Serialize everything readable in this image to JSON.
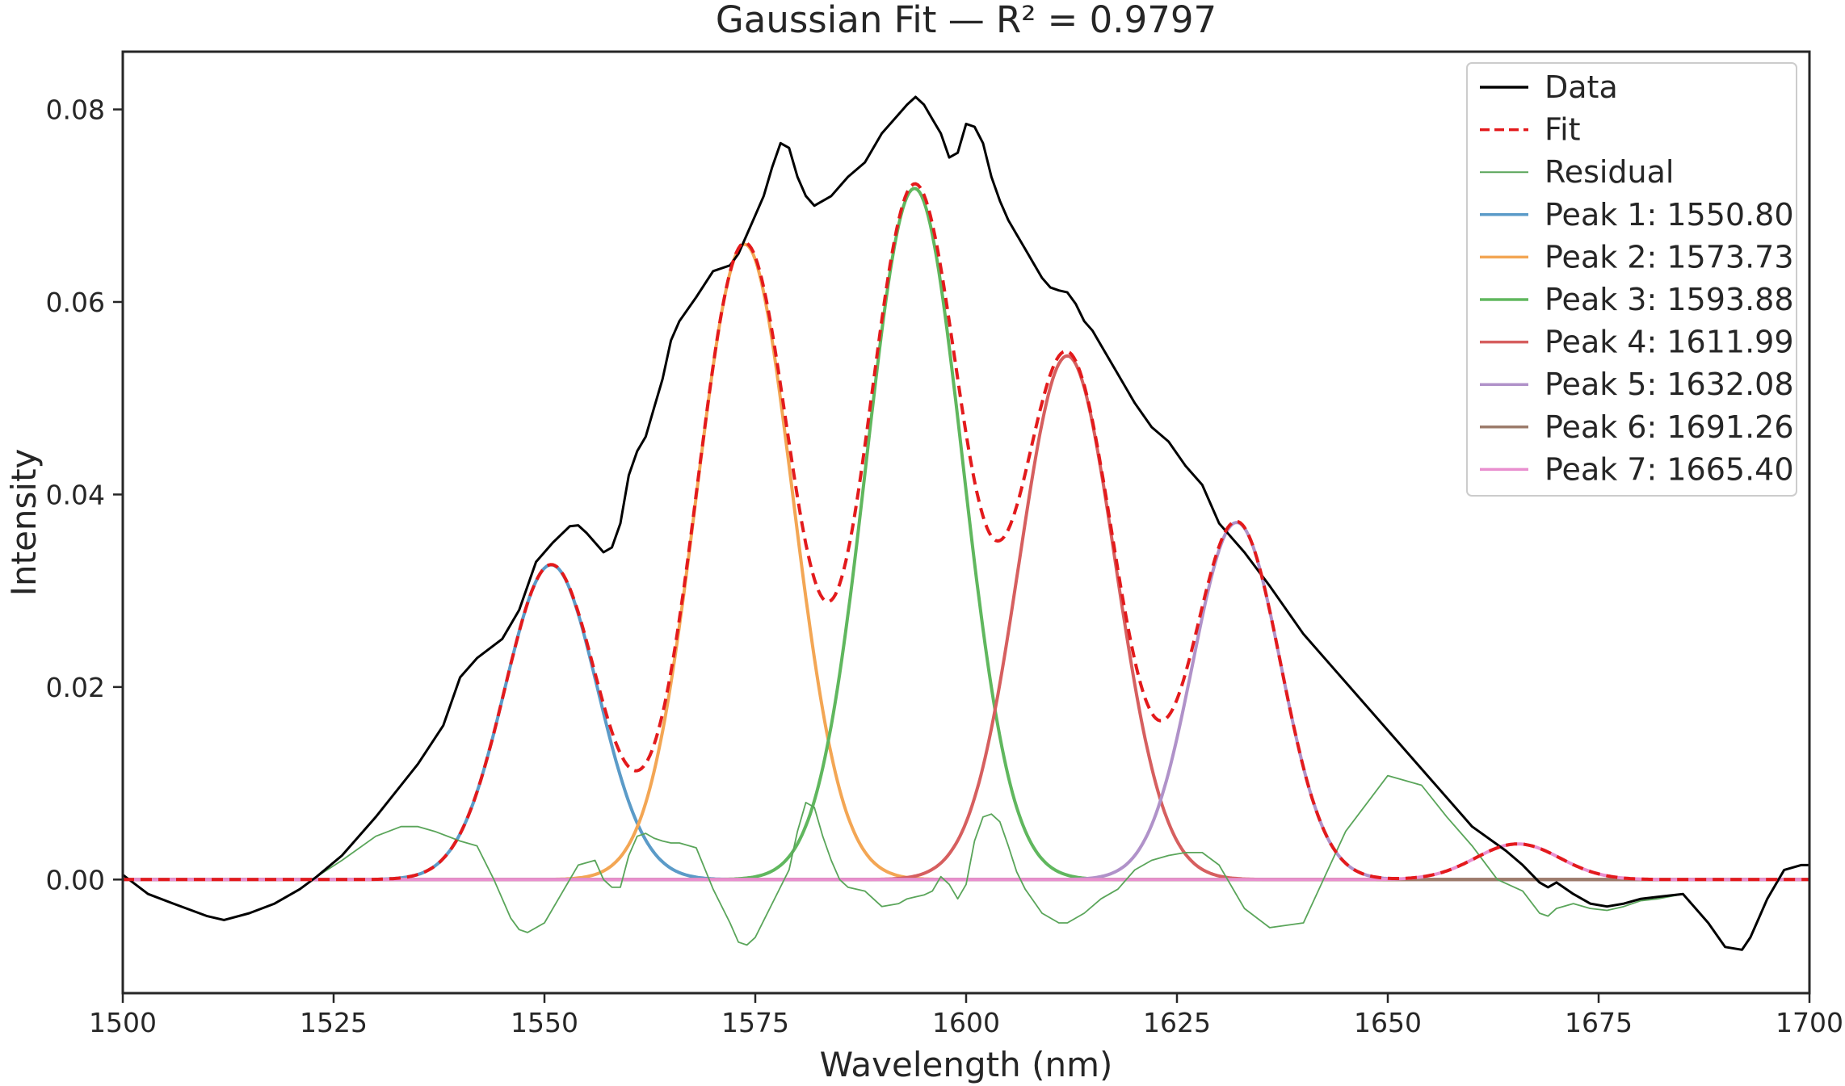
{
  "chart_data": {
    "type": "line",
    "title": "Gaussian Fit — R² = 0.9797",
    "xlabel": "Wavelength (nm)",
    "ylabel": "Intensity",
    "xlim": [
      1500,
      1700
    ],
    "ylim": [
      -0.0118,
      0.086
    ],
    "xticks": [
      1500,
      1525,
      1550,
      1575,
      1600,
      1625,
      1650,
      1675,
      1700
    ],
    "xtick_labels": [
      "1500",
      "1525",
      "1550",
      "1575",
      "1600",
      "1625",
      "1650",
      "1675",
      "1700"
    ],
    "yticks": [
      0.0,
      0.02,
      0.04,
      0.06,
      0.08
    ],
    "ytick_labels": [
      "0.00",
      "0.02",
      "0.04",
      "0.06",
      "0.08"
    ],
    "grid": false,
    "legend_position": "top-right",
    "colors": {
      "data": "#000000",
      "fit": "#e31a1c",
      "residual": "#5aa55a",
      "peak1": "#5b9bc8",
      "peak2": "#f3a654",
      "peak3": "#60b75e",
      "peak4": "#d65f5f",
      "peak5": "#b092c9",
      "peak6": "#9c7b6b",
      "peak7": "#e98fcf"
    },
    "legend": [
      {
        "key": "data",
        "label": "Data",
        "style": "solid"
      },
      {
        "key": "fit",
        "label": "Fit",
        "style": "dashed"
      },
      {
        "key": "residual",
        "label": "Residual",
        "style": "thin"
      },
      {
        "key": "peak1",
        "label": "Peak 1: 1550.80",
        "style": "solid"
      },
      {
        "key": "peak2",
        "label": "Peak 2: 1573.73",
        "style": "solid"
      },
      {
        "key": "peak3",
        "label": "Peak 3: 1593.88",
        "style": "solid"
      },
      {
        "key": "peak4",
        "label": "Peak 4: 1611.99",
        "style": "solid"
      },
      {
        "key": "peak5",
        "label": "Peak 5: 1632.08",
        "style": "solid"
      },
      {
        "key": "peak6",
        "label": "Peak 6: 1691.26",
        "style": "solid"
      },
      {
        "key": "peak7",
        "label": "Peak 7: 1665.40",
        "style": "solid"
      }
    ],
    "peaks": [
      {
        "center": 1550.8,
        "amplitude": 0.0327,
        "sigma": 5.5
      },
      {
        "center": 1573.73,
        "amplitude": 0.066,
        "sigma": 5.7
      },
      {
        "center": 1593.88,
        "amplitude": 0.0718,
        "sigma": 5.7
      },
      {
        "center": 1611.99,
        "amplitude": 0.0544,
        "sigma": 5.7
      },
      {
        "center": 1632.08,
        "amplitude": 0.0371,
        "sigma": 5.2
      },
      {
        "center": 1691.26,
        "amplitude": 0.0,
        "sigma": 5.0
      },
      {
        "center": 1665.4,
        "amplitude": 0.0037,
        "sigma": 5.0
      }
    ],
    "series": [
      {
        "key": "data",
        "x": [
          1500,
          1503,
          1506,
          1510,
          1512,
          1515,
          1518,
          1521,
          1523,
          1526,
          1530,
          1535,
          1538,
          1540,
          1542,
          1545,
          1547,
          1549,
          1551,
          1553,
          1554,
          1555,
          1556,
          1557,
          1558,
          1559,
          1560,
          1561,
          1562,
          1563,
          1564,
          1565,
          1566,
          1568,
          1570,
          1572,
          1573,
          1574,
          1575,
          1576,
          1577,
          1578,
          1579,
          1580,
          1581,
          1582,
          1583,
          1584,
          1585,
          1586,
          1588,
          1590,
          1592,
          1593,
          1594,
          1595,
          1596,
          1597,
          1598,
          1599,
          1600,
          1601,
          1602,
          1603,
          1604,
          1605,
          1606,
          1607,
          1608,
          1609,
          1610,
          1611,
          1612,
          1613,
          1614,
          1615,
          1616,
          1618,
          1620,
          1622,
          1624,
          1626,
          1628,
          1630,
          1633,
          1636,
          1640,
          1645,
          1650,
          1655,
          1660,
          1664,
          1666,
          1668,
          1669,
          1670,
          1672,
          1674,
          1676,
          1678,
          1680,
          1682,
          1685,
          1688,
          1690,
          1692,
          1693,
          1694,
          1695,
          1697,
          1699,
          1700
        ],
        "y": [
          0.0005,
          -0.0015,
          -0.0025,
          -0.0038,
          -0.0042,
          -0.0035,
          -0.0025,
          -0.001,
          0.0003,
          0.0025,
          0.0065,
          0.012,
          0.016,
          0.021,
          0.023,
          0.025,
          0.028,
          0.033,
          0.035,
          0.0367,
          0.0368,
          0.036,
          0.035,
          0.034,
          0.0345,
          0.037,
          0.042,
          0.0445,
          0.046,
          0.049,
          0.052,
          0.056,
          0.058,
          0.0605,
          0.0632,
          0.0638,
          0.065,
          0.067,
          0.069,
          0.071,
          0.074,
          0.0765,
          0.076,
          0.073,
          0.071,
          0.07,
          0.0705,
          0.071,
          0.072,
          0.073,
          0.0745,
          0.0775,
          0.0795,
          0.0805,
          0.0813,
          0.0805,
          0.079,
          0.0775,
          0.075,
          0.0755,
          0.0785,
          0.0782,
          0.0765,
          0.073,
          0.0705,
          0.0685,
          0.067,
          0.0655,
          0.064,
          0.0625,
          0.0615,
          0.0612,
          0.061,
          0.0598,
          0.058,
          0.057,
          0.0555,
          0.0525,
          0.0495,
          0.047,
          0.0455,
          0.043,
          0.041,
          0.037,
          0.034,
          0.0305,
          0.0255,
          0.0205,
          0.0155,
          0.0105,
          0.0055,
          0.003,
          0.0015,
          -0.0003,
          -0.0008,
          -0.0003,
          -0.0015,
          -0.0025,
          -0.0028,
          -0.0025,
          -0.002,
          -0.0018,
          -0.0015,
          -0.0045,
          -0.007,
          -0.0073,
          -0.006,
          -0.004,
          -0.002,
          0.001,
          0.0015,
          0.0015
        ]
      },
      {
        "key": "residual",
        "x": [
          1500,
          1503,
          1506,
          1510,
          1512,
          1515,
          1518,
          1521,
          1523,
          1526,
          1530,
          1533,
          1535,
          1537,
          1540,
          1542,
          1544,
          1546,
          1547,
          1548,
          1550,
          1552,
          1554,
          1556,
          1557,
          1558,
          1559,
          1560,
          1561,
          1562,
          1563,
          1564,
          1565,
          1566,
          1568,
          1570,
          1572,
          1573,
          1574,
          1575,
          1577,
          1579,
          1580,
          1581,
          1582,
          1583,
          1584,
          1585,
          1586,
          1588,
          1590,
          1592,
          1593,
          1594,
          1595,
          1596,
          1597,
          1598,
          1599,
          1600,
          1601,
          1602,
          1603,
          1604,
          1605,
          1606,
          1607,
          1609,
          1611,
          1612,
          1614,
          1616,
          1618,
          1620,
          1622,
          1624,
          1626,
          1628,
          1630,
          1633,
          1636,
          1640,
          1645,
          1650,
          1654,
          1657,
          1660,
          1663,
          1666,
          1668,
          1669,
          1670,
          1672,
          1674,
          1676,
          1678,
          1680,
          1682,
          1685,
          1688,
          1690,
          1692,
          1693,
          1694,
          1695,
          1697,
          1699,
          1700
        ],
        "y": [
          0.0005,
          -0.0015,
          -0.0025,
          -0.0038,
          -0.0042,
          -0.0035,
          -0.0025,
          -0.001,
          0.0003,
          0.002,
          0.0045,
          0.0055,
          0.0055,
          0.005,
          0.004,
          0.0035,
          0.0,
          -0.004,
          -0.0052,
          -0.0055,
          -0.0045,
          -0.0015,
          0.0015,
          0.002,
          0.0,
          -0.0008,
          -0.0008,
          0.0025,
          0.0045,
          0.0048,
          0.0043,
          0.004,
          0.0038,
          0.0038,
          0.0033,
          -0.001,
          -0.0045,
          -0.0065,
          -0.0068,
          -0.006,
          -0.0025,
          0.001,
          0.005,
          0.008,
          0.0075,
          0.0045,
          0.002,
          0.0,
          -0.0008,
          -0.0012,
          -0.0028,
          -0.0025,
          -0.002,
          -0.0018,
          -0.0016,
          -0.0012,
          0.0003,
          -0.0005,
          -0.002,
          -0.0005,
          0.004,
          0.0065,
          0.0068,
          0.006,
          0.0035,
          0.0008,
          -0.001,
          -0.0035,
          -0.0045,
          -0.0045,
          -0.0035,
          -0.002,
          -0.001,
          0.001,
          0.002,
          0.0025,
          0.0028,
          0.0028,
          0.0015,
          -0.003,
          -0.005,
          -0.0045,
          0.005,
          0.0108,
          0.0098,
          0.0065,
          0.0035,
          0.0,
          -0.0012,
          -0.0035,
          -0.0038,
          -0.003,
          -0.0025,
          -0.003,
          -0.0032,
          -0.0028,
          -0.0022,
          -0.002,
          -0.0015,
          -0.0045,
          -0.007,
          -0.0073,
          -0.006,
          -0.004,
          -0.002,
          0.001,
          0.0015,
          0.0015
        ]
      }
    ]
  }
}
